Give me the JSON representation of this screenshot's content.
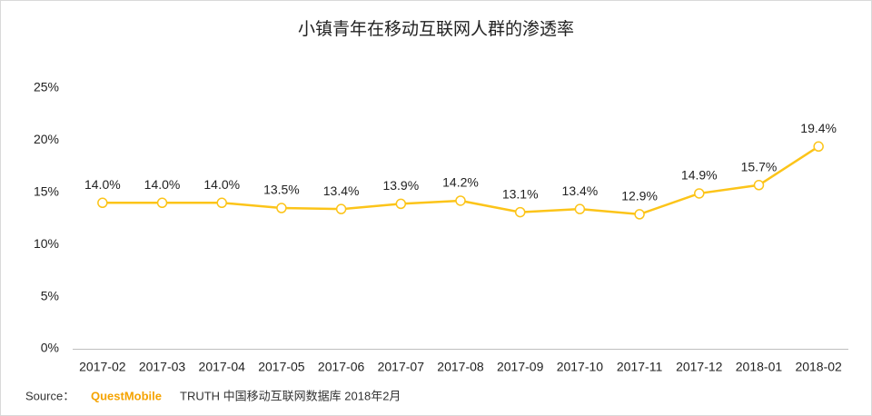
{
  "chart_data": {
    "type": "line",
    "title": "小镇青年在移动互联网人群的渗透率",
    "categories": [
      "2017-02",
      "2017-03",
      "2017-04",
      "2017-05",
      "2017-06",
      "2017-07",
      "2017-08",
      "2017-09",
      "2017-10",
      "2017-11",
      "2017-12",
      "2018-01",
      "2018-02"
    ],
    "values": [
      14.0,
      14.0,
      14.0,
      13.5,
      13.4,
      13.9,
      14.2,
      13.1,
      13.4,
      12.9,
      14.9,
      15.7,
      19.4
    ],
    "value_labels": [
      "14.0%",
      "14.0%",
      "14.0%",
      "13.5%",
      "13.4%",
      "13.9%",
      "14.2%",
      "13.1%",
      "13.4%",
      "12.9%",
      "14.9%",
      "15.7%",
      "19.4%"
    ],
    "color": "#fcc419",
    "ylim": [
      0,
      25
    ],
    "yticks": [
      {
        "value": 0,
        "label": "0%"
      },
      {
        "value": 5,
        "label": "5%"
      },
      {
        "value": 10,
        "label": "10%"
      },
      {
        "value": 15,
        "label": "15%"
      },
      {
        "value": 20,
        "label": "20%"
      },
      {
        "value": 25,
        "label": "25%"
      }
    ],
    "grid": false
  },
  "source": {
    "label": "Source：",
    "brand": "QuestMobile",
    "text": "TRUTH 中国移动互联网数据库 2018年2月"
  }
}
